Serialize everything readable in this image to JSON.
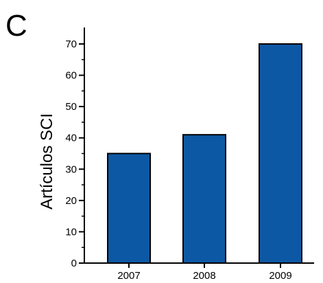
{
  "panel_label": "C",
  "colors": {
    "bar_fill": "#0D58A4",
    "bar_stroke": "#000000",
    "axis": "#000000"
  },
  "chart_data": {
    "type": "bar",
    "title": "",
    "xlabel": "",
    "ylabel": "Artículos SCI",
    "categories": [
      "2007",
      "2008",
      "2009"
    ],
    "values": [
      35,
      41,
      70
    ],
    "ylim": [
      0,
      75
    ],
    "yticks": [
      0,
      10,
      20,
      30,
      40,
      50,
      60,
      70
    ],
    "yticks_minor": [
      5,
      15,
      25,
      35,
      45,
      55,
      65
    ],
    "grid": false,
    "legend": "none"
  }
}
